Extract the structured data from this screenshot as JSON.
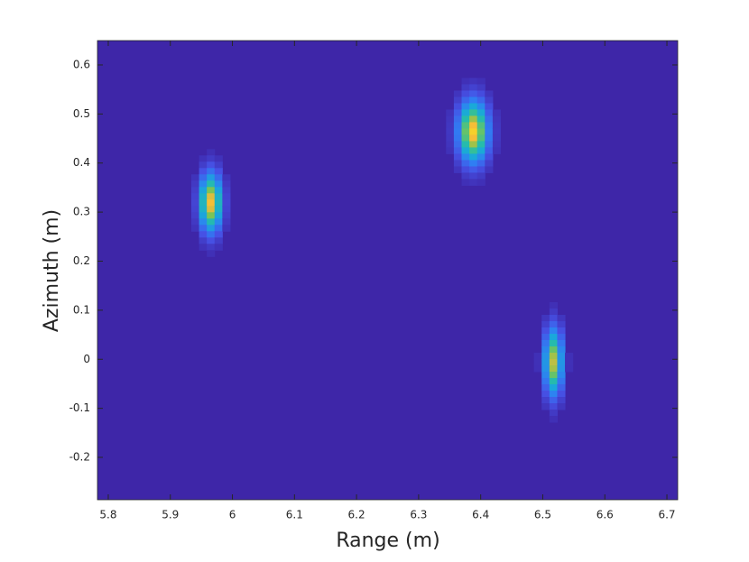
{
  "chart_data": {
    "type": "heatmap",
    "x_label": "Range (m)",
    "y_label": "Azimuth (m)",
    "x": [
      5.965,
      6.388,
      6.517
    ],
    "y": [
      0.319,
      0.464,
      -0.006
    ],
    "sx": [
      0.012,
      0.016,
      0.01
    ],
    "sy": [
      0.04,
      0.042,
      0.046
    ],
    "values": [
      0.86,
      0.9,
      0.78
    ],
    "colormap": "parula",
    "clim": [
      0,
      1
    ],
    "xlim": [
      5.7826,
      6.7174
    ],
    "ylim": [
      -0.2864,
      0.6496
    ],
    "xticks": [
      5.8,
      5.9,
      6,
      6.1,
      6.2,
      6.3,
      6.4,
      6.5,
      6.6,
      6.7
    ],
    "yticks": [
      -0.2,
      -0.1,
      0,
      0.1,
      0.2,
      0.3,
      0.4,
      0.5,
      0.6
    ],
    "grid": false
  }
}
